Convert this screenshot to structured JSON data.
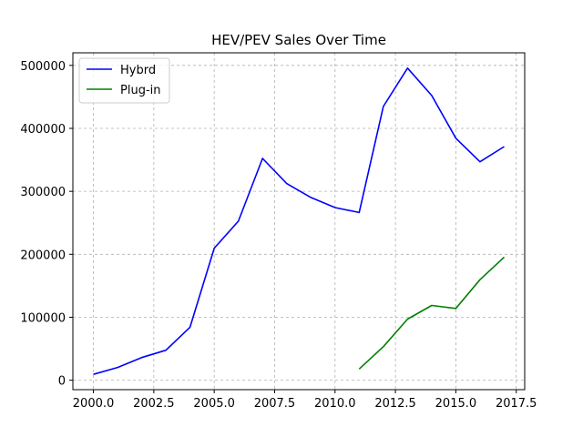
{
  "chart_data": {
    "type": "line",
    "title": "HEV/PEV Sales Over Time",
    "xlabel": "",
    "ylabel": "",
    "xlim": [
      1999.15,
      2017.85
    ],
    "ylim": [
      -15000,
      520000
    ],
    "x_ticks": [
      2000.0,
      2002.5,
      2005.0,
      2007.5,
      2010.0,
      2012.5,
      2015.0,
      2017.5
    ],
    "x_tick_labels": [
      "2000.0",
      "2002.5",
      "2005.0",
      "2007.5",
      "2010.0",
      "2012.5",
      "2015.0",
      "2017.5"
    ],
    "y_ticks": [
      0,
      100000,
      200000,
      300000,
      400000,
      500000
    ],
    "y_tick_labels": [
      "0",
      "100000",
      "200000",
      "300000",
      "400000",
      "500000"
    ],
    "grid": true,
    "legend_position": "top-left",
    "series": [
      {
        "name": "Hybrd",
        "color": "#0000ff",
        "x": [
          2000,
          2001,
          2002,
          2003,
          2004,
          2005,
          2006,
          2007,
          2008,
          2009,
          2010,
          2011,
          2012,
          2013,
          2014,
          2015,
          2016,
          2017
        ],
        "values": [
          9350,
          20287,
          36035,
          47600,
          84199,
          209711,
          252636,
          352274,
          312386,
          290271,
          274210,
          266329,
          434648,
          495685,
          452152,
          384404,
          346949,
          371000
        ]
      },
      {
        "name": "Plug-in",
        "color": "#008000",
        "x": [
          2011,
          2012,
          2013,
          2014,
          2015,
          2016,
          2017
        ],
        "values": [
          17800,
          53200,
          97100,
          118800,
          114000,
          159600,
          195600
        ]
      }
    ]
  }
}
